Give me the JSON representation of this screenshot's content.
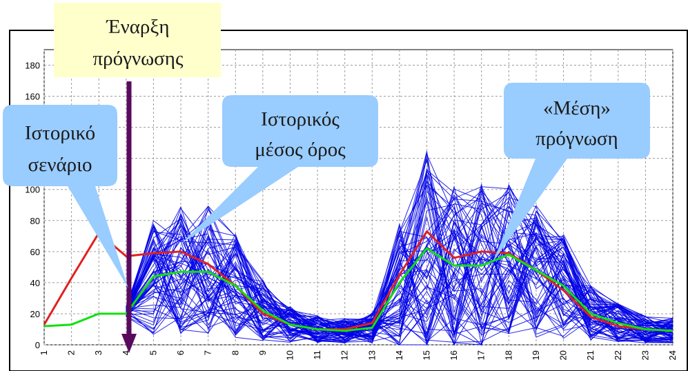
{
  "colors": {
    "ensemble": "#0000e6",
    "scenario": "#e02020",
    "historical_mean": "#10e010",
    "arrow": "#5a0a5e",
    "bubble": "#99ccff",
    "note": "#ffffcc"
  },
  "annotations": {
    "start_note": [
      "Έναρξη",
      "πρόγνωσης"
    ],
    "historical_scenario": [
      "Ιστορικό",
      "σενάριο"
    ],
    "historical_mean": [
      "Ιστορικός",
      "μέσος όρος"
    ],
    "mean_forecast": [
      "«Μέση»",
      "πρόγνωση"
    ]
  },
  "chart_data": {
    "type": "line",
    "title": "",
    "xlabel": "",
    "ylabel": "",
    "x": [
      1,
      2,
      3,
      4,
      5,
      6,
      7,
      8,
      9,
      10,
      11,
      12,
      13,
      14,
      15,
      16,
      17,
      18,
      19,
      20,
      21,
      22,
      23,
      24
    ],
    "xlim": [
      1,
      24
    ],
    "ylim": [
      0,
      190
    ],
    "y_ticks": [
      0,
      20,
      40,
      60,
      80,
      100,
      120,
      140,
      160,
      180
    ],
    "grid": true,
    "forecast_start_x": 4,
    "series": [
      {
        "role": "scenario",
        "values": [
          13,
          43,
          72,
          57,
          59,
          60,
          52,
          38,
          20,
          13,
          10,
          10,
          14,
          45,
          73,
          56,
          60,
          59,
          48,
          35,
          18,
          12,
          10,
          9
        ]
      },
      {
        "role": "historical_mean",
        "values": [
          12,
          13,
          20,
          20,
          44,
          47,
          47,
          38,
          22,
          13,
          10,
          9,
          11,
          40,
          62,
          51,
          51,
          58,
          48,
          38,
          20,
          14,
          10,
          9
        ]
      }
    ],
    "ensemble": {
      "member_count": 70,
      "note": "bundle of ensemble forecast traces (x = 4..24) spread around the mean forecast"
    }
  }
}
